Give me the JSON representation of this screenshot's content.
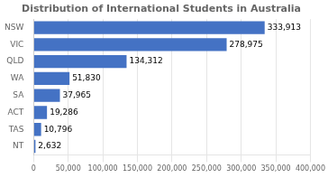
{
  "chart_data": {
    "type": "bar",
    "orientation": "horizontal",
    "title": "Distribution of International Students in Australia",
    "categories": [
      "NSW",
      "VIC",
      "QLD",
      "WA",
      "SA",
      "ACT",
      "TAS",
      "NT"
    ],
    "values": [
      333913,
      278975,
      134312,
      51830,
      37965,
      19286,
      10796,
      2632
    ],
    "value_labels": [
      "333,913",
      "278,975",
      "134,312",
      "51,830",
      "37,965",
      "19,286",
      "10,796",
      "2,632"
    ],
    "data_labels": true,
    "color": "#4472C4",
    "xlim": [
      0,
      400000
    ],
    "xticks": [
      0,
      {
        "value": 50000,
        "label": "50,000"
      },
      {
        "value": 100000,
        "label": "100,000"
      },
      {
        "value": 150000,
        "label": "150,000"
      },
      {
        "value": 200000,
        "label": "200,000"
      },
      {
        "value": 250000,
        "label": "250,000"
      },
      {
        "value": 300000,
        "label": "300,000"
      },
      {
        "value": 350000,
        "label": "350,000"
      },
      {
        "value": 400000,
        "label": "400,000"
      }
    ],
    "grid": true
  }
}
